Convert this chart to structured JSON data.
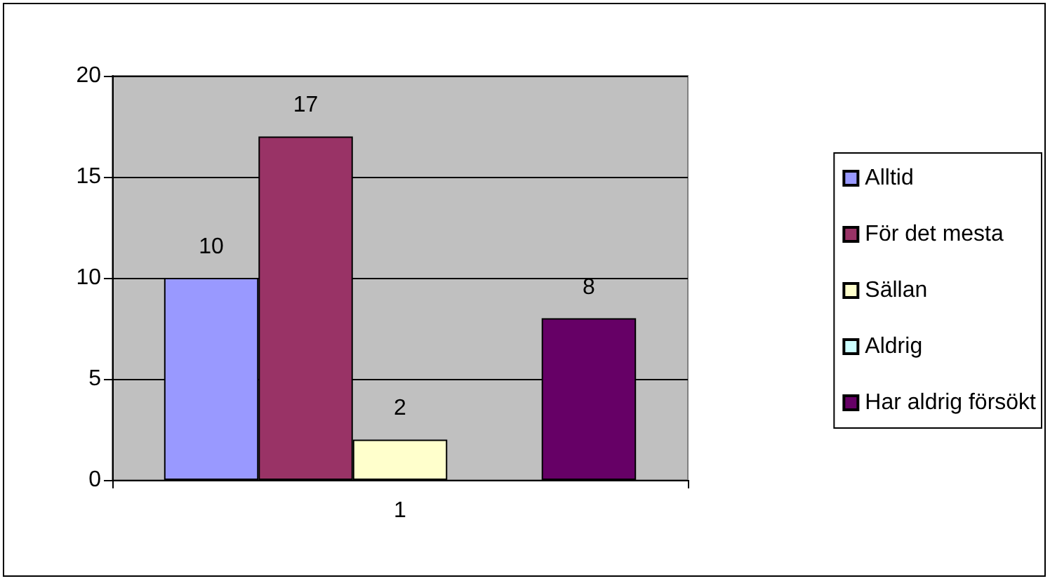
{
  "chart_data": {
    "type": "bar",
    "categories": [
      "1"
    ],
    "series": [
      {
        "name": "Alltid",
        "color": "#9999ff",
        "values": [
          10
        ],
        "value_labels": [
          "10"
        ]
      },
      {
        "name": "För det mesta",
        "color": "#993366",
        "values": [
          17
        ],
        "value_labels": [
          "17"
        ]
      },
      {
        "name": "Sällan",
        "color": "#ffffcc",
        "values": [
          2
        ],
        "value_labels": [
          "2"
        ]
      },
      {
        "name": "Aldrig",
        "color": "#ccffff",
        "values": [
          0
        ],
        "value_labels": [
          null
        ]
      },
      {
        "name": "Har aldrig försökt",
        "color": "#660066",
        "values": [
          8
        ],
        "value_labels": [
          "8"
        ]
      }
    ],
    "ylim": [
      0,
      20
    ],
    "yticks": [
      0,
      5,
      10,
      15,
      20
    ],
    "grid": "y",
    "legend": "right"
  }
}
